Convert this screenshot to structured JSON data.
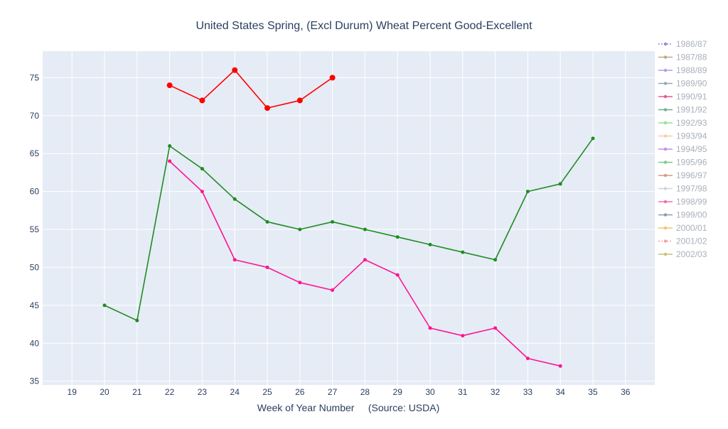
{
  "chart_data": {
    "type": "line",
    "title": "United States Spring, (Excl Durum) Wheat Percent Good-Excellent",
    "xlabel": "Week of Year Number     (Source: USDA)",
    "ylabel": "",
    "xlim": [
      18.1,
      36.9
    ],
    "ylim": [
      34.5,
      78.5
    ],
    "x_ticks": [
      19,
      20,
      21,
      22,
      23,
      24,
      25,
      26,
      27,
      28,
      29,
      30,
      31,
      32,
      33,
      34,
      35,
      36
    ],
    "y_ticks": [
      35,
      40,
      45,
      50,
      55,
      60,
      65,
      70,
      75
    ],
    "grid": true,
    "legend_position": "right",
    "colors": {
      "plot_bg": "#e5ecf6",
      "grid": "#ffffff",
      "text": "#2a3f5f",
      "legend_text": "#a9b0bb"
    },
    "series": [
      {
        "name": "1986/87",
        "color": "#8c8cd8",
        "dash": "dot",
        "x": [],
        "values": []
      },
      {
        "name": "1987/88",
        "color": "#c4a484",
        "x": [],
        "values": []
      },
      {
        "name": "1988/89",
        "color": "#b59cde",
        "x": [],
        "values": []
      },
      {
        "name": "1989/90",
        "color": "#9aa5b5",
        "x": [],
        "values": []
      },
      {
        "name": "1990/91",
        "color": "#e8559a",
        "x": [],
        "values": []
      },
      {
        "name": "1991/92",
        "color": "#6fae8f",
        "x": [],
        "values": []
      },
      {
        "name": "1992/93",
        "color": "#8fe38f",
        "x": [],
        "values": []
      },
      {
        "name": "1993/94",
        "color": "#f3cfa6",
        "x": [],
        "values": []
      },
      {
        "name": "1994/95",
        "color": "#c48ce8",
        "x": [],
        "values": []
      },
      {
        "name": "1995/96",
        "color": "#79c98c",
        "x": [],
        "values": []
      },
      {
        "name": "1996/97",
        "color": "#d49a84",
        "x": [],
        "values": []
      },
      {
        "name": "1997/98",
        "color": "#cfd3d8",
        "x": [],
        "values": []
      },
      {
        "name": "1998/99",
        "color": "#f06bb5",
        "x": [],
        "values": []
      },
      {
        "name": "1999/00",
        "color": "#8e99a8",
        "x": [],
        "values": []
      },
      {
        "name": "2000/01",
        "color": "#f5c26b",
        "x": [],
        "values": []
      },
      {
        "name": "2001/02",
        "color": "#f2a0a0",
        "dash": "dot",
        "x": [],
        "values": []
      },
      {
        "name": "2002/03",
        "color": "#c9c07a",
        "x": [],
        "values": []
      },
      {
        "name": "",
        "color": "#228b22",
        "marker_size": 2.5,
        "x": [
          20,
          21,
          22,
          23,
          24,
          25,
          26,
          27,
          28,
          29,
          30,
          31,
          32,
          33,
          34,
          35
        ],
        "values": [
          45,
          43,
          66,
          63,
          59,
          56,
          55,
          56,
          55,
          54,
          53,
          52,
          51,
          60,
          61,
          67
        ]
      },
      {
        "name": "",
        "color": "#ff1493",
        "marker_size": 2.5,
        "x": [
          22,
          23,
          24,
          25,
          26,
          27,
          28,
          29,
          30,
          31,
          32,
          33,
          34
        ],
        "values": [
          64,
          60,
          51,
          50,
          48,
          47,
          51,
          49,
          42,
          41,
          42,
          38,
          37
        ]
      },
      {
        "name": "",
        "color": "#ff0000",
        "marker_size": 4,
        "x": [
          22,
          23,
          24,
          25,
          26,
          27
        ],
        "values": [
          74,
          72,
          76,
          71,
          72,
          75
        ]
      }
    ]
  }
}
